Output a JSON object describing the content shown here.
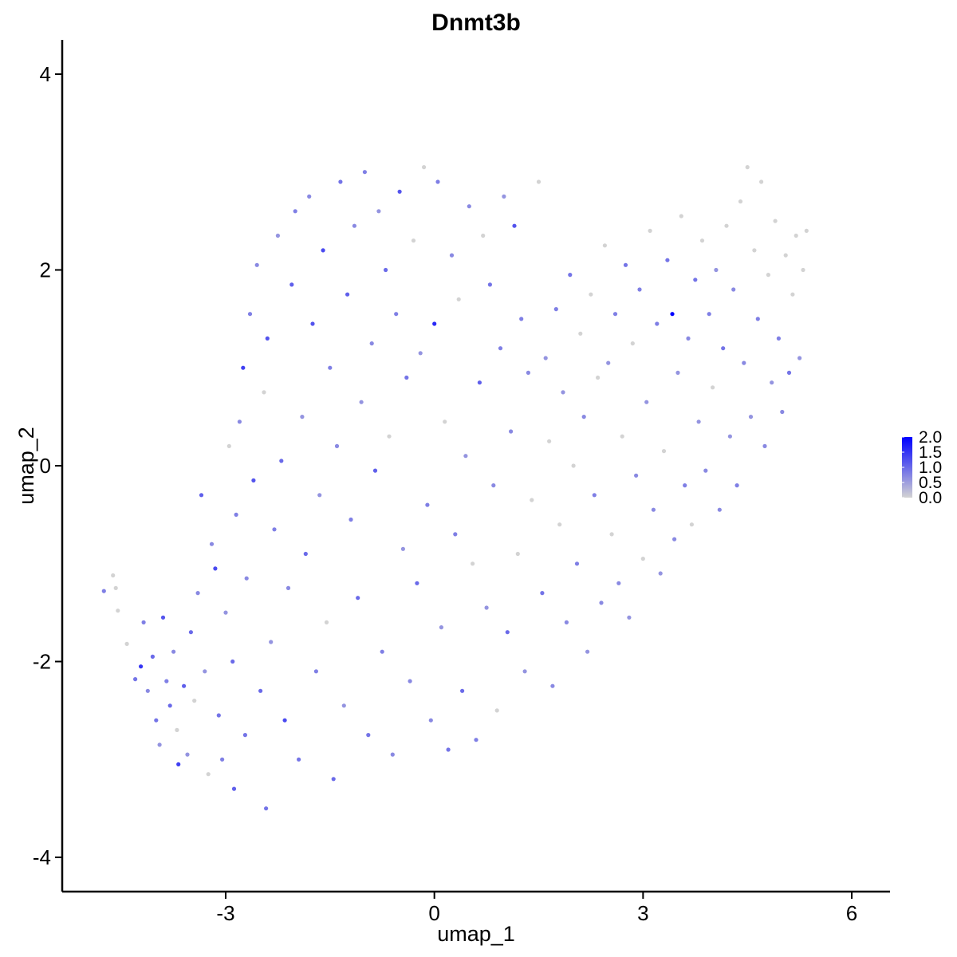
{
  "chart_data": {
    "type": "scatter",
    "title": "Dnmt3b",
    "xlabel": "umap_1",
    "ylabel": "umap_2",
    "xlim": [
      -5.35,
      6.55
    ],
    "ylim": [
      -4.35,
      4.35
    ],
    "x_ticks": [
      -3,
      0,
      3,
      6
    ],
    "x_tick_labels": [
      "-3",
      "0",
      "3",
      "6"
    ],
    "y_ticks": [
      -4,
      -2,
      0,
      2,
      4
    ],
    "y_tick_labels": [
      "-4",
      "-2",
      "0",
      "2",
      "4"
    ],
    "grid": false,
    "legend": {
      "placement": "right",
      "type": "colorbar",
      "min": 0.0,
      "max": 2.0,
      "labels": [
        "2.0",
        "1.5",
        "1.0",
        "0.5",
        "0.0"
      ]
    },
    "color_low": "#d3d3d3",
    "color_high": "#0000ff",
    "point_color_variable": "expression",
    "points_note_omitted": false,
    "points": [
      [
        -4.75,
        -1.28,
        0.8
      ],
      [
        -4.62,
        -1.12,
        0.0
      ],
      [
        -4.58,
        -1.25,
        0.0
      ],
      [
        -4.55,
        -1.48,
        0.0
      ],
      [
        -4.42,
        -1.82,
        0.0
      ],
      [
        -4.3,
        -2.18,
        0.9
      ],
      [
        -4.22,
        -2.05,
        1.5
      ],
      [
        -4.18,
        -1.6,
        0.8
      ],
      [
        -4.12,
        -2.3,
        0.7
      ],
      [
        -4.05,
        -1.95,
        1.0
      ],
      [
        -4.0,
        -2.6,
        0.9
      ],
      [
        -3.95,
        -2.85,
        0.6
      ],
      [
        -3.9,
        -1.55,
        1.2
      ],
      [
        -3.85,
        -2.2,
        0.8
      ],
      [
        -3.8,
        -2.45,
        1.0
      ],
      [
        -3.75,
        -1.9,
        0.7
      ],
      [
        -3.7,
        -2.7,
        0.0
      ],
      [
        -3.68,
        -3.05,
        1.4
      ],
      [
        -3.6,
        -2.25,
        1.1
      ],
      [
        -3.55,
        -2.95,
        0.6
      ],
      [
        -3.5,
        -1.7,
        1.0
      ],
      [
        -3.45,
        -2.4,
        0.0
      ],
      [
        -3.4,
        -1.3,
        0.7
      ],
      [
        -3.35,
        -0.3,
        1.1
      ],
      [
        -3.3,
        -2.1,
        0.6
      ],
      [
        -3.25,
        -3.15,
        0.0
      ],
      [
        -3.2,
        -0.8,
        0.7
      ],
      [
        -3.15,
        -1.05,
        1.3
      ],
      [
        -3.1,
        -2.55,
        0.9
      ],
      [
        -3.05,
        -3.0,
        0.8
      ],
      [
        -3.0,
        -1.5,
        0.6
      ],
      [
        -2.95,
        0.2,
        0.0
      ],
      [
        -2.9,
        -2.0,
        1.0
      ],
      [
        -2.88,
        -3.3,
        1.1
      ],
      [
        -2.85,
        -0.5,
        0.8
      ],
      [
        -2.8,
        0.45,
        0.7
      ],
      [
        -2.75,
        1.0,
        1.4
      ],
      [
        -2.72,
        -2.75,
        0.9
      ],
      [
        -2.7,
        -1.15,
        0.7
      ],
      [
        -2.65,
        1.55,
        0.8
      ],
      [
        -2.6,
        -0.15,
        1.2
      ],
      [
        -2.55,
        2.05,
        0.7
      ],
      [
        -2.5,
        -2.3,
        1.0
      ],
      [
        -2.45,
        0.75,
        0.0
      ],
      [
        -2.42,
        -3.5,
        0.9
      ],
      [
        -2.4,
        1.3,
        1.2
      ],
      [
        -2.35,
        -1.8,
        0.6
      ],
      [
        -2.3,
        -0.65,
        0.8
      ],
      [
        -2.25,
        2.35,
        0.6
      ],
      [
        -2.2,
        0.05,
        1.0
      ],
      [
        -2.15,
        -2.6,
        1.3
      ],
      [
        -2.1,
        -1.25,
        0.7
      ],
      [
        -2.05,
        1.85,
        1.1
      ],
      [
        -2.0,
        2.6,
        0.8
      ],
      [
        -1.95,
        -3.0,
        0.9
      ],
      [
        -1.9,
        0.5,
        0.6
      ],
      [
        -1.85,
        -0.9,
        1.0
      ],
      [
        -1.8,
        2.75,
        0.7
      ],
      [
        -1.75,
        1.45,
        1.2
      ],
      [
        -1.7,
        -2.1,
        0.8
      ],
      [
        -1.65,
        -0.3,
        0.6
      ],
      [
        -1.6,
        2.2,
        1.3
      ],
      [
        -1.55,
        -1.6,
        0.0
      ],
      [
        -1.5,
        1.0,
        0.8
      ],
      [
        -1.45,
        -3.2,
        1.0
      ],
      [
        -1.4,
        0.2,
        0.7
      ],
      [
        -1.35,
        2.9,
        0.9
      ],
      [
        -1.3,
        -2.45,
        0.6
      ],
      [
        -1.25,
        1.75,
        1.1
      ],
      [
        -1.2,
        -0.55,
        0.8
      ],
      [
        -1.15,
        2.45,
        0.7
      ],
      [
        -1.1,
        -1.35,
        1.0
      ],
      [
        -1.05,
        0.65,
        0.6
      ],
      [
        -1.0,
        3.0,
        0.8
      ],
      [
        -0.95,
        -2.75,
        0.9
      ],
      [
        -0.9,
        1.25,
        0.7
      ],
      [
        -0.85,
        -0.05,
        1.1
      ],
      [
        -0.8,
        2.6,
        0.6
      ],
      [
        -0.75,
        -1.9,
        0.8
      ],
      [
        -0.7,
        2.0,
        1.0
      ],
      [
        -0.65,
        0.3,
        0.0
      ],
      [
        -0.6,
        -2.95,
        0.7
      ],
      [
        -0.55,
        1.55,
        0.8
      ],
      [
        -0.5,
        2.8,
        1.2
      ],
      [
        -0.45,
        -0.85,
        0.6
      ],
      [
        -0.4,
        0.9,
        0.9
      ],
      [
        -0.35,
        -2.2,
        0.7
      ],
      [
        -0.3,
        2.3,
        0.0
      ],
      [
        -0.25,
        -1.2,
        1.0
      ],
      [
        -0.2,
        1.15,
        0.6
      ],
      [
        -0.15,
        3.05,
        0.0
      ],
      [
        -0.1,
        -0.4,
        0.8
      ],
      [
        -0.05,
        -2.6,
        0.7
      ],
      [
        0.0,
        1.45,
        1.6
      ],
      [
        0.05,
        2.9,
        0.8
      ],
      [
        0.1,
        -1.65,
        0.6
      ],
      [
        0.15,
        0.45,
        0.0
      ],
      [
        0.2,
        -2.9,
        0.9
      ],
      [
        0.25,
        2.15,
        0.7
      ],
      [
        0.3,
        -0.7,
        0.8
      ],
      [
        0.35,
        1.7,
        0.0
      ],
      [
        0.4,
        -2.3,
        1.0
      ],
      [
        0.45,
        0.1,
        0.6
      ],
      [
        0.5,
        2.65,
        0.7
      ],
      [
        0.55,
        -1.0,
        0.0
      ],
      [
        0.6,
        -2.8,
        0.8
      ],
      [
        0.65,
        0.85,
        1.1
      ],
      [
        0.7,
        2.35,
        0.0
      ],
      [
        0.75,
        -1.45,
        0.6
      ],
      [
        0.8,
        1.85,
        0.9
      ],
      [
        0.85,
        -0.2,
        0.7
      ],
      [
        0.9,
        -2.5,
        0.0
      ],
      [
        0.95,
        1.2,
        0.8
      ],
      [
        1.0,
        2.75,
        0.6
      ],
      [
        1.05,
        -1.7,
        1.0
      ],
      [
        1.1,
        0.35,
        0.7
      ],
      [
        1.15,
        2.45,
        1.2
      ],
      [
        1.2,
        -0.9,
        0.0
      ],
      [
        1.25,
        1.5,
        0.8
      ],
      [
        1.3,
        -2.1,
        0.6
      ],
      [
        1.35,
        0.95,
        0.7
      ],
      [
        1.4,
        -0.35,
        0.0
      ],
      [
        1.5,
        2.9,
        0.0
      ],
      [
        1.55,
        -1.3,
        0.9
      ],
      [
        1.6,
        1.1,
        0.6
      ],
      [
        1.65,
        0.25,
        0.0
      ],
      [
        1.7,
        -2.25,
        0.7
      ],
      [
        1.75,
        1.6,
        0.8
      ],
      [
        1.8,
        -0.6,
        0.0
      ],
      [
        1.85,
        0.75,
        0.6
      ],
      [
        1.9,
        -1.6,
        0.7
      ],
      [
        1.95,
        1.95,
        0.9
      ],
      [
        2.0,
        0.0,
        0.0
      ],
      [
        2.05,
        -1.0,
        0.8
      ],
      [
        2.1,
        1.35,
        0.0
      ],
      [
        2.15,
        0.5,
        0.7
      ],
      [
        2.2,
        -1.9,
        0.6
      ],
      [
        2.25,
        1.75,
        0.0
      ],
      [
        2.3,
        -0.3,
        0.8
      ],
      [
        2.35,
        0.9,
        0.0
      ],
      [
        2.4,
        -1.4,
        0.7
      ],
      [
        2.45,
        2.25,
        0.0
      ],
      [
        2.5,
        1.05,
        0.6
      ],
      [
        2.55,
        -0.7,
        0.0
      ],
      [
        2.6,
        1.55,
        0.8
      ],
      [
        2.65,
        -1.2,
        0.7
      ],
      [
        2.7,
        0.3,
        0.0
      ],
      [
        2.75,
        2.05,
        0.9
      ],
      [
        2.8,
        -1.55,
        0.6
      ],
      [
        2.85,
        1.25,
        0.0
      ],
      [
        2.9,
        -0.1,
        0.7
      ],
      [
        2.95,
        1.8,
        0.8
      ],
      [
        3.0,
        -0.95,
        0.0
      ],
      [
        3.05,
        0.65,
        0.6
      ],
      [
        3.1,
        2.4,
        0.0
      ],
      [
        3.15,
        -0.45,
        0.7
      ],
      [
        3.2,
        1.45,
        0.8
      ],
      [
        3.25,
        -1.1,
        0.6
      ],
      [
        3.3,
        0.15,
        0.0
      ],
      [
        3.35,
        2.1,
        0.9
      ],
      [
        3.42,
        1.55,
        2.0
      ],
      [
        3.45,
        -0.75,
        0.7
      ],
      [
        3.5,
        0.95,
        0.6
      ],
      [
        3.55,
        2.55,
        0.0
      ],
      [
        3.6,
        -0.2,
        0.8
      ],
      [
        3.65,
        1.3,
        0.7
      ],
      [
        3.7,
        -0.6,
        0.0
      ],
      [
        3.75,
        1.9,
        0.9
      ],
      [
        3.8,
        0.45,
        0.6
      ],
      [
        3.85,
        2.3,
        0.0
      ],
      [
        3.9,
        -0.05,
        0.7
      ],
      [
        3.95,
        1.55,
        0.8
      ],
      [
        4.0,
        0.8,
        0.0
      ],
      [
        4.05,
        2.0,
        0.6
      ],
      [
        4.1,
        -0.45,
        0.7
      ],
      [
        4.15,
        1.2,
        0.9
      ],
      [
        4.2,
        2.45,
        0.0
      ],
      [
        4.25,
        0.3,
        0.6
      ],
      [
        4.3,
        1.8,
        0.7
      ],
      [
        4.35,
        -0.2,
        0.8
      ],
      [
        4.4,
        2.7,
        0.0
      ],
      [
        4.45,
        1.05,
        0.7
      ],
      [
        4.5,
        3.05,
        0.0
      ],
      [
        4.55,
        0.5,
        0.6
      ],
      [
        4.6,
        2.2,
        0.0
      ],
      [
        4.65,
        1.5,
        0.8
      ],
      [
        4.7,
        2.9,
        0.0
      ],
      [
        4.75,
        0.2,
        0.7
      ],
      [
        4.8,
        1.95,
        0.0
      ],
      [
        4.85,
        0.85,
        0.6
      ],
      [
        4.9,
        2.5,
        0.0
      ],
      [
        4.95,
        1.3,
        0.8
      ],
      [
        5.0,
        0.55,
        0.7
      ],
      [
        5.05,
        2.15,
        0.0
      ],
      [
        5.1,
        0.95,
        0.9
      ],
      [
        5.15,
        1.75,
        0.0
      ],
      [
        5.2,
        2.35,
        0.0
      ],
      [
        5.25,
        1.1,
        0.6
      ],
      [
        5.3,
        2.0,
        0.0
      ],
      [
        5.35,
        2.4,
        0.0
      ]
    ]
  }
}
